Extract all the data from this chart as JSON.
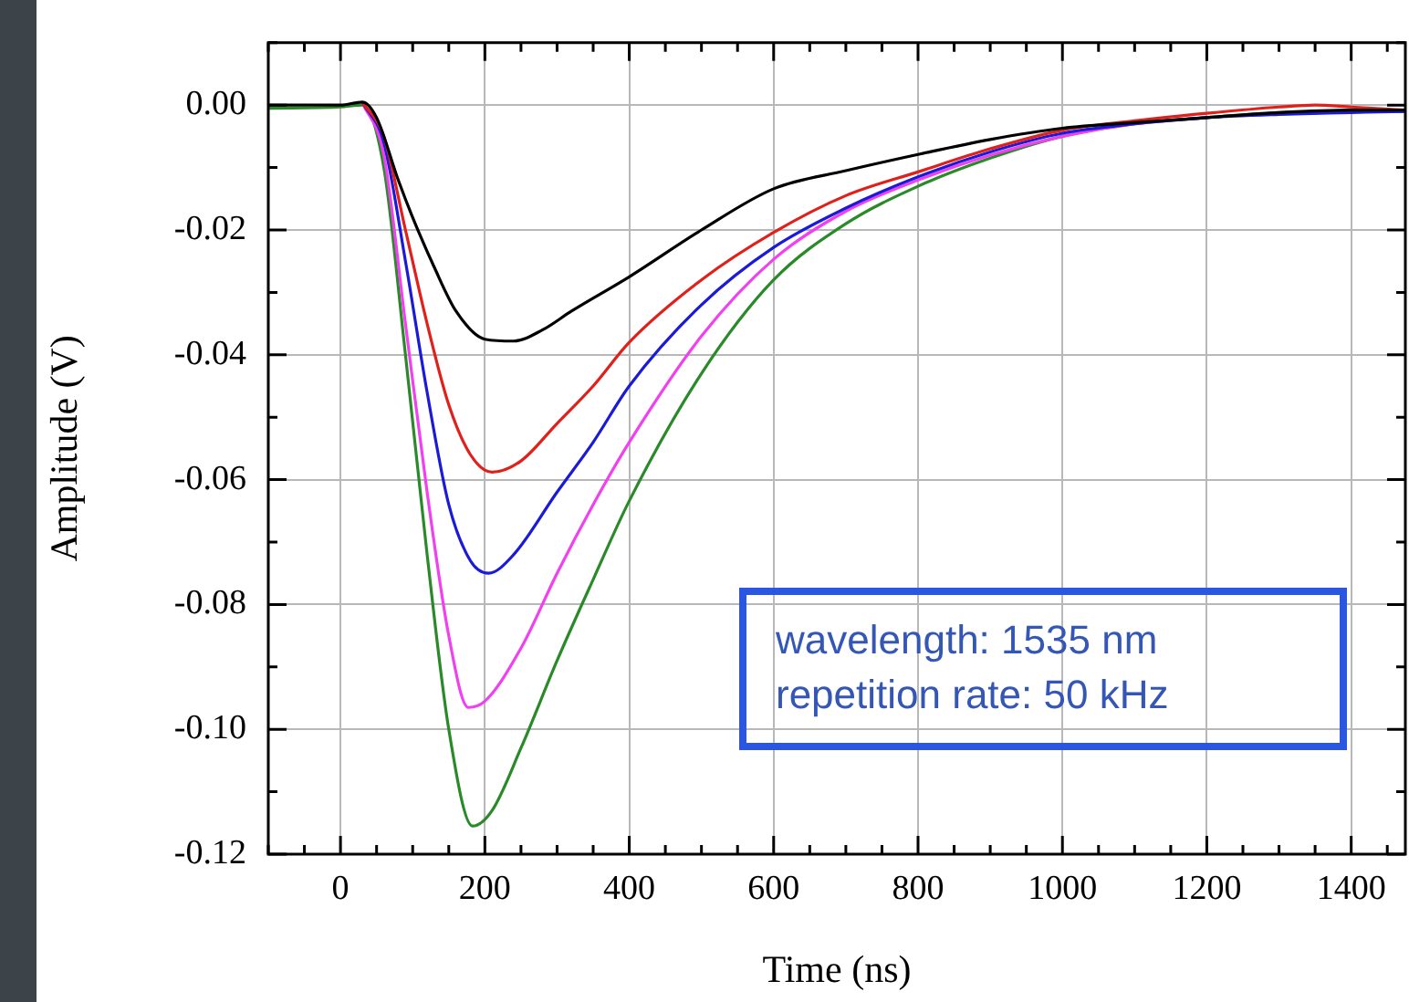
{
  "chart_data": {
    "type": "line",
    "xlabel": "Time (ns)",
    "ylabel": "Amplitude (V)",
    "xlim": [
      -100,
      1475
    ],
    "xticks": [
      0,
      200,
      400,
      600,
      800,
      1000,
      1200,
      1400
    ],
    "ylim": [
      -0.12,
      0.01
    ],
    "yticks": [
      {
        "value": 0,
        "label": "0.00"
      },
      {
        "value": -0.02,
        "label": "-0.02"
      },
      {
        "value": -0.04,
        "label": "-0.04"
      },
      {
        "value": -0.06,
        "label": "-0.06"
      },
      {
        "value": -0.08,
        "label": "-0.08"
      },
      {
        "value": -0.1,
        "label": "-0.10"
      },
      {
        "value": -0.12,
        "label": "-0.12"
      }
    ],
    "grid": true,
    "legend": false,
    "marker": "none",
    "line_style": "solid",
    "annotations": [
      "wavelength: 1535 nm",
      "repetition rate: 50 kHz"
    ],
    "series": [
      {
        "color": "#000000",
        "x": [
          -100,
          0,
          30,
          50,
          80,
          100,
          130,
          160,
          200,
          240,
          280,
          320,
          400,
          500,
          600,
          700,
          800,
          900,
          1000,
          1100,
          1200,
          1300,
          1400,
          1475
        ],
        "values": [
          0,
          0,
          0.0005,
          -0.002,
          -0.012,
          -0.018,
          -0.026,
          -0.033,
          -0.0375,
          -0.0378,
          -0.036,
          -0.033,
          -0.0275,
          -0.02,
          -0.0134,
          -0.0105,
          -0.0079,
          -0.0055,
          -0.0037,
          -0.0028,
          -0.002,
          -0.0012,
          -0.0008,
          -0.0008
        ]
      },
      {
        "color": "#e0201b",
        "x": [
          30,
          60,
          90,
          120,
          150,
          180,
          210,
          250,
          300,
          350,
          400,
          500,
          600,
          700,
          800,
          900,
          1000,
          1100,
          1200,
          1300,
          1350,
          1400,
          1475
        ],
        "values": [
          0.0005,
          -0.005,
          -0.02,
          -0.035,
          -0.048,
          -0.056,
          -0.0588,
          -0.057,
          -0.051,
          -0.045,
          -0.038,
          -0.028,
          -0.0204,
          -0.0145,
          -0.0107,
          -0.007,
          -0.004,
          -0.0025,
          -0.0013,
          -0.0003,
          0,
          -0.0003,
          -0.0008
        ]
      },
      {
        "color": "#1a1ad8",
        "x": [
          30,
          60,
          90,
          120,
          150,
          180,
          205,
          240,
          300,
          350,
          400,
          500,
          600,
          700,
          800,
          900,
          1000,
          1100,
          1200,
          1300,
          1400,
          1475
        ],
        "values": [
          0.0005,
          -0.006,
          -0.025,
          -0.046,
          -0.064,
          -0.073,
          -0.075,
          -0.072,
          -0.062,
          -0.054,
          -0.045,
          -0.032,
          -0.0228,
          -0.0165,
          -0.0115,
          -0.0075,
          -0.0045,
          -0.003,
          -0.002,
          -0.0015,
          -0.0012,
          -0.001
        ]
      },
      {
        "color": "#f040f0",
        "x": [
          30,
          60,
          90,
          120,
          150,
          177,
          200,
          250,
          300,
          350,
          400,
          500,
          600,
          700,
          800,
          900,
          1000,
          1100,
          1200
        ],
        "values": [
          0.0005,
          -0.008,
          -0.035,
          -0.062,
          -0.085,
          -0.0965,
          -0.0955,
          -0.087,
          -0.075,
          -0.064,
          -0.054,
          -0.037,
          -0.0247,
          -0.017,
          -0.012,
          -0.008,
          -0.005,
          -0.003,
          -0.002
        ]
      },
      {
        "color": "#2a8a2a",
        "x": [
          -100,
          0,
          30,
          60,
          90,
          120,
          150,
          183,
          210,
          250,
          300,
          350,
          400,
          500,
          600,
          700,
          800,
          900,
          1000,
          1100,
          1200,
          1300,
          1400,
          1475
        ],
        "values": [
          -0.0005,
          -0.0003,
          0,
          -0.01,
          -0.04,
          -0.072,
          -0.1,
          -0.1155,
          -0.113,
          -0.103,
          -0.089,
          -0.076,
          -0.0634,
          -0.043,
          -0.028,
          -0.019,
          -0.013,
          -0.0085,
          -0.005,
          -0.003,
          -0.002,
          -0.0012,
          -0.001,
          -0.001
        ]
      }
    ]
  }
}
